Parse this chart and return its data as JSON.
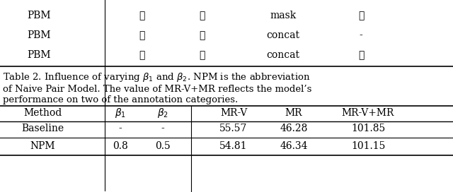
{
  "caption": "Table 2. Influence of varying $\\beta_1$ and $\\beta_2$. NPM is the abbreviation\nof Naive Pair Model. The value of MR-V+MR reflects the model’s\nperformance on two of the annotation categories.",
  "top_table": {
    "rows": [
      [
        "PBM",
        "✓",
        "✓",
        "mask",
        "✓"
      ],
      [
        "PBM",
        "✓",
        "✓",
        "concat",
        "-"
      ],
      [
        "PBM",
        "✓",
        "✓",
        "concat",
        "✓"
      ]
    ]
  },
  "bottom_table": {
    "col_labels": [
      "Method",
      "$\\beta_1$",
      "$\\beta_2$",
      "MR-V",
      "MR",
      "MR-V+MR"
    ],
    "rows": [
      [
        "Baseline",
        "-",
        "-",
        "55.57",
        "46.28",
        "101.85"
      ],
      [
        "NPM",
        "0.8",
        "0.5",
        "54.81",
        "46.34",
        "101.15"
      ]
    ],
    "divider_col": 3
  },
  "bg_color": "#ffffff",
  "text_color": "#000000",
  "font_size": 9.5,
  "caption_font_size": 9.5
}
